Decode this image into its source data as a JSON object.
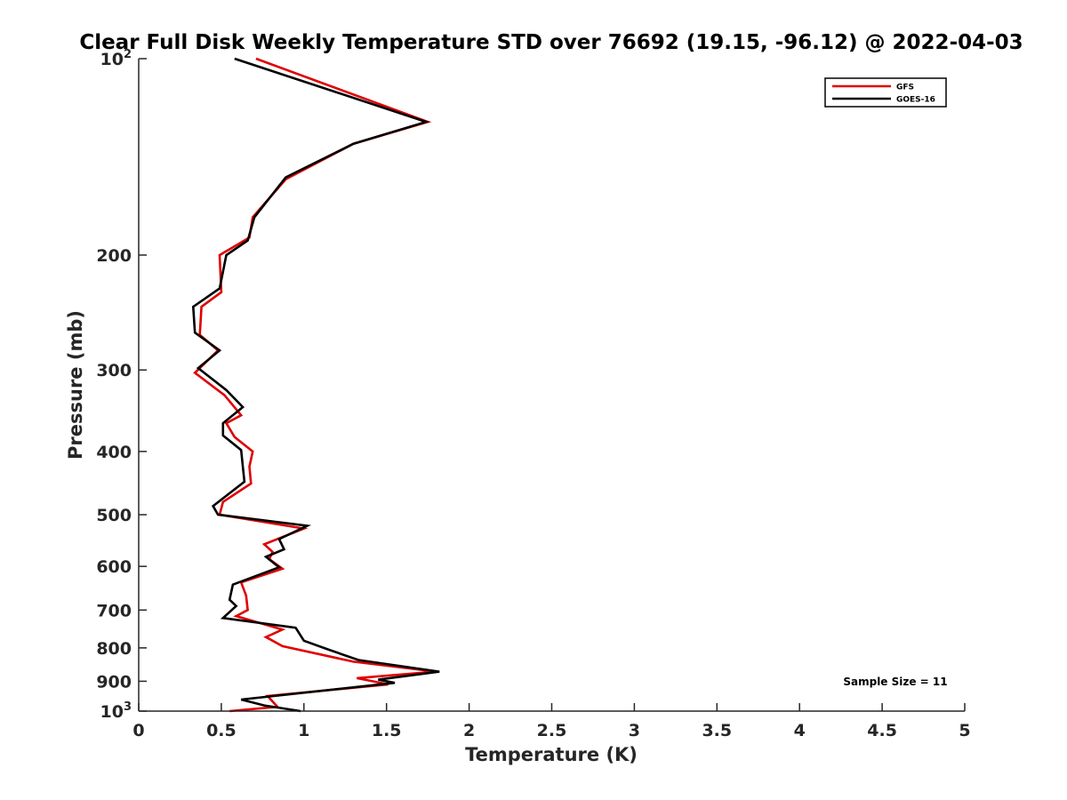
{
  "chart_data": {
    "type": "line",
    "title": "Clear Full Disk Weekly Temperature STD over 76692 (19.15, -96.12) @ 2022-04-03",
    "xlabel": "Temperature (K)",
    "ylabel": "Pressure (mb)",
    "xlim": [
      0,
      5
    ],
    "ylim": [
      1000,
      100
    ],
    "yscale": "log",
    "x_ticks": [
      0,
      0.5,
      1,
      1.5,
      2,
      2.5,
      3,
      3.5,
      4,
      4.5,
      5
    ],
    "x_tick_labels": [
      "0",
      "0.5",
      "1",
      "1.5",
      "2",
      "2.5",
      "3",
      "3.5",
      "4",
      "4.5",
      "5"
    ],
    "y_ticks": [
      100,
      200,
      300,
      400,
      500,
      600,
      700,
      800,
      900,
      1000
    ],
    "y_tick_labels": [
      {
        "base": "10",
        "exp": "2"
      },
      {
        "base": "200",
        "exp": ""
      },
      {
        "base": "300",
        "exp": ""
      },
      {
        "base": "400",
        "exp": ""
      },
      {
        "base": "500",
        "exp": ""
      },
      {
        "base": "600",
        "exp": ""
      },
      {
        "base": "700",
        "exp": ""
      },
      {
        "base": "800",
        "exp": ""
      },
      {
        "base": "900",
        "exp": ""
      },
      {
        "base": "10",
        "exp": "3"
      }
    ],
    "legend_position": "top-right",
    "annotation": "Sample Size = 11",
    "series": [
      {
        "name": "GFS",
        "color": "#e00000",
        "points": [
          {
            "x": 0.71,
            "y": 100
          },
          {
            "x": 1.75,
            "y": 125
          },
          {
            "x": 1.3,
            "y": 135
          },
          {
            "x": 0.89,
            "y": 153
          },
          {
            "x": 0.69,
            "y": 175
          },
          {
            "x": 0.67,
            "y": 188
          },
          {
            "x": 0.49,
            "y": 200
          },
          {
            "x": 0.5,
            "y": 228
          },
          {
            "x": 0.38,
            "y": 240
          },
          {
            "x": 0.37,
            "y": 265
          },
          {
            "x": 0.48,
            "y": 280
          },
          {
            "x": 0.34,
            "y": 303
          },
          {
            "x": 0.52,
            "y": 328
          },
          {
            "x": 0.62,
            "y": 352
          },
          {
            "x": 0.53,
            "y": 362
          },
          {
            "x": 0.58,
            "y": 380
          },
          {
            "x": 0.69,
            "y": 400
          },
          {
            "x": 0.67,
            "y": 422
          },
          {
            "x": 0.68,
            "y": 448
          },
          {
            "x": 0.51,
            "y": 478
          },
          {
            "x": 0.49,
            "y": 500
          },
          {
            "x": 1.0,
            "y": 525
          },
          {
            "x": 0.76,
            "y": 555
          },
          {
            "x": 0.81,
            "y": 570
          },
          {
            "x": 0.79,
            "y": 585
          },
          {
            "x": 0.87,
            "y": 605
          },
          {
            "x": 0.62,
            "y": 635
          },
          {
            "x": 0.65,
            "y": 665
          },
          {
            "x": 0.66,
            "y": 700
          },
          {
            "x": 0.59,
            "y": 715
          },
          {
            "x": 0.87,
            "y": 750
          },
          {
            "x": 0.77,
            "y": 770
          },
          {
            "x": 0.87,
            "y": 795
          },
          {
            "x": 1.3,
            "y": 840
          },
          {
            "x": 1.8,
            "y": 870
          },
          {
            "x": 1.32,
            "y": 890
          },
          {
            "x": 1.51,
            "y": 910
          },
          {
            "x": 0.78,
            "y": 948
          },
          {
            "x": 0.84,
            "y": 985
          },
          {
            "x": 0.55,
            "y": 1000
          }
        ]
      },
      {
        "name": "GOES-16",
        "color": "#000000",
        "points": [
          {
            "x": 0.58,
            "y": 100
          },
          {
            "x": 1.74,
            "y": 125
          },
          {
            "x": 1.3,
            "y": 135
          },
          {
            "x": 0.89,
            "y": 152
          },
          {
            "x": 0.7,
            "y": 175
          },
          {
            "x": 0.66,
            "y": 190
          },
          {
            "x": 0.53,
            "y": 200
          },
          {
            "x": 0.49,
            "y": 225
          },
          {
            "x": 0.33,
            "y": 240
          },
          {
            "x": 0.34,
            "y": 263
          },
          {
            "x": 0.49,
            "y": 280
          },
          {
            "x": 0.36,
            "y": 298
          },
          {
            "x": 0.53,
            "y": 322
          },
          {
            "x": 0.63,
            "y": 342
          },
          {
            "x": 0.51,
            "y": 362
          },
          {
            "x": 0.51,
            "y": 378
          },
          {
            "x": 0.62,
            "y": 398
          },
          {
            "x": 0.63,
            "y": 422
          },
          {
            "x": 0.64,
            "y": 445
          },
          {
            "x": 0.45,
            "y": 485
          },
          {
            "x": 0.48,
            "y": 500
          },
          {
            "x": 1.02,
            "y": 520
          },
          {
            "x": 0.85,
            "y": 545
          },
          {
            "x": 0.88,
            "y": 565
          },
          {
            "x": 0.77,
            "y": 580
          },
          {
            "x": 0.85,
            "y": 602
          },
          {
            "x": 0.57,
            "y": 640
          },
          {
            "x": 0.55,
            "y": 675
          },
          {
            "x": 0.59,
            "y": 690
          },
          {
            "x": 0.51,
            "y": 720
          },
          {
            "x": 0.95,
            "y": 745
          },
          {
            "x": 1.0,
            "y": 780
          },
          {
            "x": 1.15,
            "y": 805
          },
          {
            "x": 1.33,
            "y": 835
          },
          {
            "x": 1.82,
            "y": 870
          },
          {
            "x": 1.45,
            "y": 895
          },
          {
            "x": 1.55,
            "y": 905
          },
          {
            "x": 0.62,
            "y": 960
          },
          {
            "x": 0.76,
            "y": 980
          },
          {
            "x": 0.98,
            "y": 1000
          }
        ]
      }
    ]
  }
}
